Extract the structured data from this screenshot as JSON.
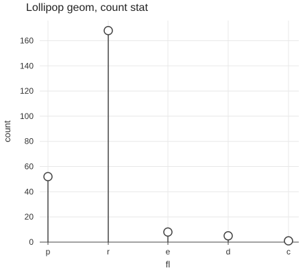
{
  "chart_data": {
    "type": "lollipop",
    "title": "Lollipop geom, count stat",
    "xlabel": "fl",
    "ylabel": "count",
    "categories": [
      "p",
      "r",
      "e",
      "d",
      "c"
    ],
    "values": [
      52,
      168,
      8,
      5,
      1
    ],
    "ylim": [
      0,
      176
    ],
    "yticks": [
      0,
      20,
      40,
      60,
      80,
      100,
      120,
      140,
      160
    ],
    "grid": true,
    "colors": {
      "stem": "#444444",
      "head_fill": "#ffffff",
      "grid": "#e8e8e8"
    }
  }
}
